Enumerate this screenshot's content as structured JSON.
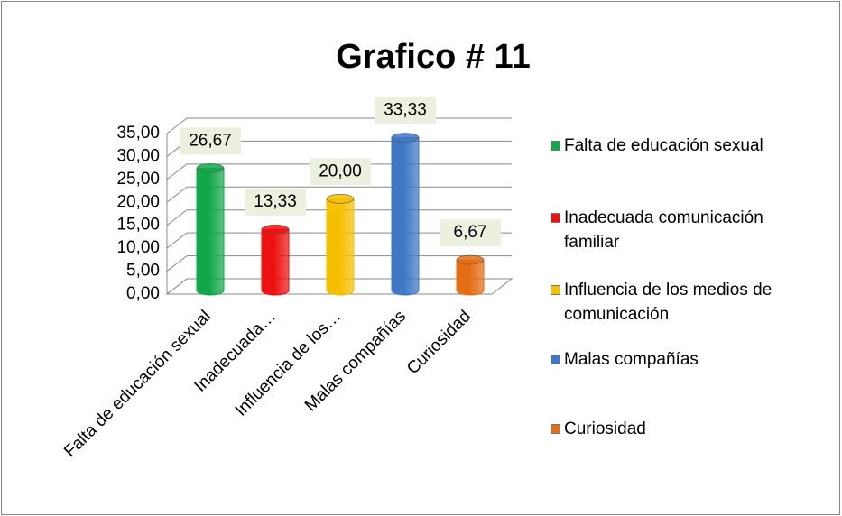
{
  "chart_data": {
    "type": "bar",
    "title": "Grafico # 11",
    "categories": [
      "Falta de educación sexual",
      "Inadecuada…",
      "Influencia de los…",
      "Malas compañías",
      "Curiosidad"
    ],
    "legend": [
      "Falta de educación sexual",
      "Inadecuada comunicación familiar",
      "Influencia de los medios de comunicación",
      "Malas compañías",
      "Curiosidad"
    ],
    "values": [
      26.67,
      13.33,
      20.0,
      33.33,
      6.67
    ],
    "value_labels": [
      "26,67",
      "13,33",
      "20,00",
      "33,33",
      "6,67"
    ],
    "colors": [
      "#12a84a",
      "#ee1111",
      "#f5c000",
      "#3f78c4",
      "#e56e14"
    ],
    "ylim": [
      0,
      35
    ],
    "yticks": [
      {
        "value": 0,
        "label": "0,00"
      },
      {
        "value": 5,
        "label": "5,00"
      },
      {
        "value": 10,
        "label": "10,00"
      },
      {
        "value": 15,
        "label": "15,00"
      },
      {
        "value": 20,
        "label": "20,00"
      },
      {
        "value": 25,
        "label": "25,00"
      },
      {
        "value": 30,
        "label": "30,00"
      },
      {
        "value": 35,
        "label": "35,00"
      }
    ],
    "grid": true
  }
}
